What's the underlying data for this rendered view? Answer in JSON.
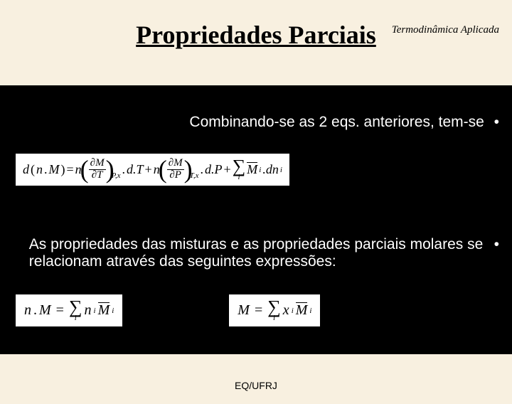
{
  "header": {
    "course": "Termodinâmica Aplicada"
  },
  "title": "Propriedades Parciais",
  "content": {
    "line1": "Combinando-se as 2 eqs. anteriores, tem-se",
    "line2": "As propriedades das misturas e as propriedades parciais molares se relacionam através das seguintes expressões:"
  },
  "bullet": "•",
  "math": {
    "d": "d",
    "n": "n",
    "M": "M",
    "eq": "=",
    "partial": "∂",
    "T": "T",
    "P": "P",
    "x": "x",
    "dT": "d.T",
    "dP": "d.P",
    "plus": "+",
    "Mi": "M",
    "i": "i",
    "dni": ".dn",
    "Px": "P,x",
    "Tx": "T,x",
    "ni": "n",
    "xi": "x"
  },
  "footer": "EQ/UFRJ",
  "style": {
    "page_bg": "#f8f0e0",
    "box_bg": "#000000",
    "formula_bg": "#ffffff",
    "title_fontsize": 36,
    "body_fontsize": 21,
    "header_fontsize": 15,
    "footer_fontsize": 14
  }
}
